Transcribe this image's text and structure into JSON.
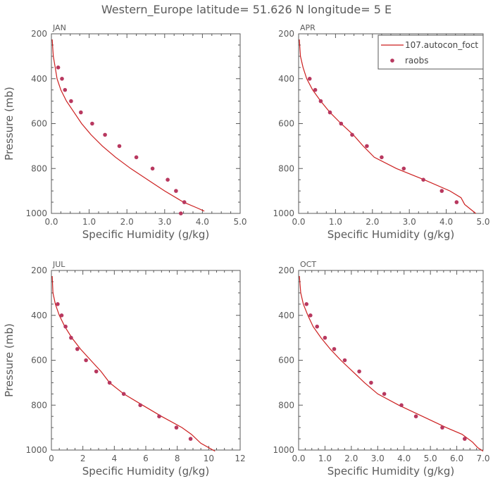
{
  "title": "Western_Europe  latitude= 51.626 N longitude= 5 E",
  "colors": {
    "model": "#cc1f1f",
    "obs": "#b8385f",
    "axis": "#5a5a5a"
  },
  "legend": {
    "model_label": "107.autocon_foct",
    "obs_label": "raobs",
    "placement": "top-right"
  },
  "chart_data": [
    {
      "type": "line",
      "panel": "JAN",
      "xlabel": "Specific Humidity (g/kg)",
      "ylabel": "Pressure (mb)",
      "xlim": [
        0,
        5
      ],
      "ylim": [
        200,
        1000
      ],
      "y_inverted": true,
      "xticks": [
        0,
        1,
        2,
        3,
        4,
        5
      ],
      "xtick_labels": [
        "0.0",
        "1.0",
        "2.0",
        "3.0",
        "4.0",
        "5.0"
      ],
      "yticks": [
        200,
        400,
        600,
        800,
        1000
      ],
      "series": [
        {
          "name": "107.autocon_foct",
          "kind": "line",
          "x": [
            0.02,
            0.05,
            0.1,
            0.15,
            0.25,
            0.4,
            0.6,
            0.8,
            1.05,
            1.35,
            1.7,
            2.1,
            2.55,
            3.0,
            3.5,
            3.85,
            4.05
          ],
          "y": [
            225,
            300,
            350,
            400,
            450,
            500,
            550,
            600,
            650,
            700,
            750,
            800,
            850,
            900,
            950,
            975,
            990
          ]
        },
        {
          "name": "raobs",
          "kind": "scatter",
          "x": [
            0.18,
            0.28,
            0.36,
            0.52,
            0.78,
            1.08,
            1.42,
            1.8,
            2.25,
            2.68,
            3.08,
            3.3,
            3.52,
            3.43
          ],
          "y": [
            350,
            400,
            450,
            500,
            550,
            600,
            650,
            700,
            750,
            800,
            850,
            900,
            950,
            1000
          ]
        }
      ]
    },
    {
      "type": "line",
      "panel": "APR",
      "xlabel": "Specific Humidity (g/kg)",
      "ylabel": "",
      "xlim": [
        0,
        5
      ],
      "ylim": [
        200,
        1000
      ],
      "y_inverted": true,
      "xticks": [
        0,
        1,
        2,
        3,
        4,
        5
      ],
      "xtick_labels": [
        "0.0",
        "1.0",
        "2.0",
        "3.0",
        "4.0",
        "5.0"
      ],
      "yticks": [
        200,
        400,
        600,
        800,
        1000
      ],
      "series": [
        {
          "name": "107.autocon_foct",
          "kind": "line",
          "x": [
            0.02,
            0.05,
            0.12,
            0.22,
            0.38,
            0.6,
            0.85,
            1.15,
            1.48,
            1.75,
            2.05,
            2.65,
            3.4,
            4.1,
            4.4,
            4.5,
            4.8
          ],
          "y": [
            225,
            300,
            350,
            400,
            450,
            500,
            550,
            600,
            650,
            700,
            750,
            800,
            850,
            900,
            930,
            960,
            1000
          ]
        },
        {
          "name": "raobs",
          "kind": "scatter",
          "x": [
            0.3,
            0.45,
            0.6,
            0.85,
            1.15,
            1.45,
            1.85,
            2.25,
            2.85,
            3.38,
            3.88,
            4.28
          ],
          "y": [
            400,
            450,
            500,
            550,
            600,
            650,
            700,
            750,
            800,
            850,
            900,
            950
          ]
        }
      ]
    },
    {
      "type": "line",
      "panel": "JUL",
      "xlabel": "Specific Humidity (g/kg)",
      "ylabel": "Pressure (mb)",
      "xlim": [
        0,
        12
      ],
      "ylim": [
        200,
        1000
      ],
      "y_inverted": true,
      "xticks": [
        0,
        2,
        4,
        6,
        8,
        10,
        12
      ],
      "xtick_labels": [
        "0",
        "2",
        "4",
        "6",
        "8",
        "10",
        "12"
      ],
      "yticks": [
        200,
        400,
        600,
        800,
        1000
      ],
      "series": [
        {
          "name": "107.autocon_foct",
          "kind": "line",
          "x": [
            0.05,
            0.1,
            0.25,
            0.5,
            0.85,
            1.3,
            1.85,
            2.5,
            3.15,
            3.7,
            4.6,
            5.8,
            7.0,
            8.3,
            8.9,
            9.5,
            10.4
          ],
          "y": [
            225,
            300,
            350,
            400,
            450,
            500,
            550,
            600,
            650,
            700,
            750,
            800,
            850,
            900,
            930,
            970,
            1005
          ]
        },
        {
          "name": "raobs",
          "kind": "scatter",
          "x": [
            0.4,
            0.65,
            0.9,
            1.25,
            1.65,
            2.2,
            2.85,
            3.7,
            4.6,
            5.65,
            6.85,
            7.95,
            8.85
          ],
          "y": [
            350,
            400,
            450,
            500,
            550,
            600,
            650,
            700,
            750,
            800,
            850,
            900,
            950
          ]
        }
      ]
    },
    {
      "type": "line",
      "panel": "OCT",
      "xlabel": "Specific Humidity (g/kg)",
      "ylabel": "",
      "xlim": [
        0,
        7
      ],
      "ylim": [
        200,
        1000
      ],
      "y_inverted": true,
      "xticks": [
        0,
        1,
        2,
        3,
        4,
        5,
        6,
        7
      ],
      "xtick_labels": [
        "0.0",
        "1.0",
        "2.0",
        "3.0",
        "4.0",
        "5.0",
        "6.0",
        "7.0"
      ],
      "yticks": [
        200,
        400,
        600,
        800,
        1000
      ],
      "series": [
        {
          "name": "107.autocon_foct",
          "kind": "line",
          "x": [
            0.03,
            0.08,
            0.18,
            0.35,
            0.55,
            0.85,
            1.2,
            1.6,
            2.05,
            2.5,
            3.0,
            3.8,
            4.7,
            5.6,
            6.2,
            6.6,
            6.8,
            7.0
          ],
          "y": [
            225,
            300,
            350,
            400,
            450,
            500,
            550,
            600,
            650,
            700,
            750,
            800,
            850,
            900,
            930,
            965,
            990,
            1005
          ]
        },
        {
          "name": "raobs",
          "kind": "scatter",
          "x": [
            0.3,
            0.45,
            0.7,
            1.0,
            1.35,
            1.75,
            2.3,
            2.75,
            3.25,
            3.9,
            4.45,
            5.45,
            6.3
          ],
          "y": [
            350,
            400,
            450,
            500,
            550,
            600,
            650,
            700,
            750,
            800,
            850,
            900,
            950
          ]
        }
      ]
    }
  ]
}
